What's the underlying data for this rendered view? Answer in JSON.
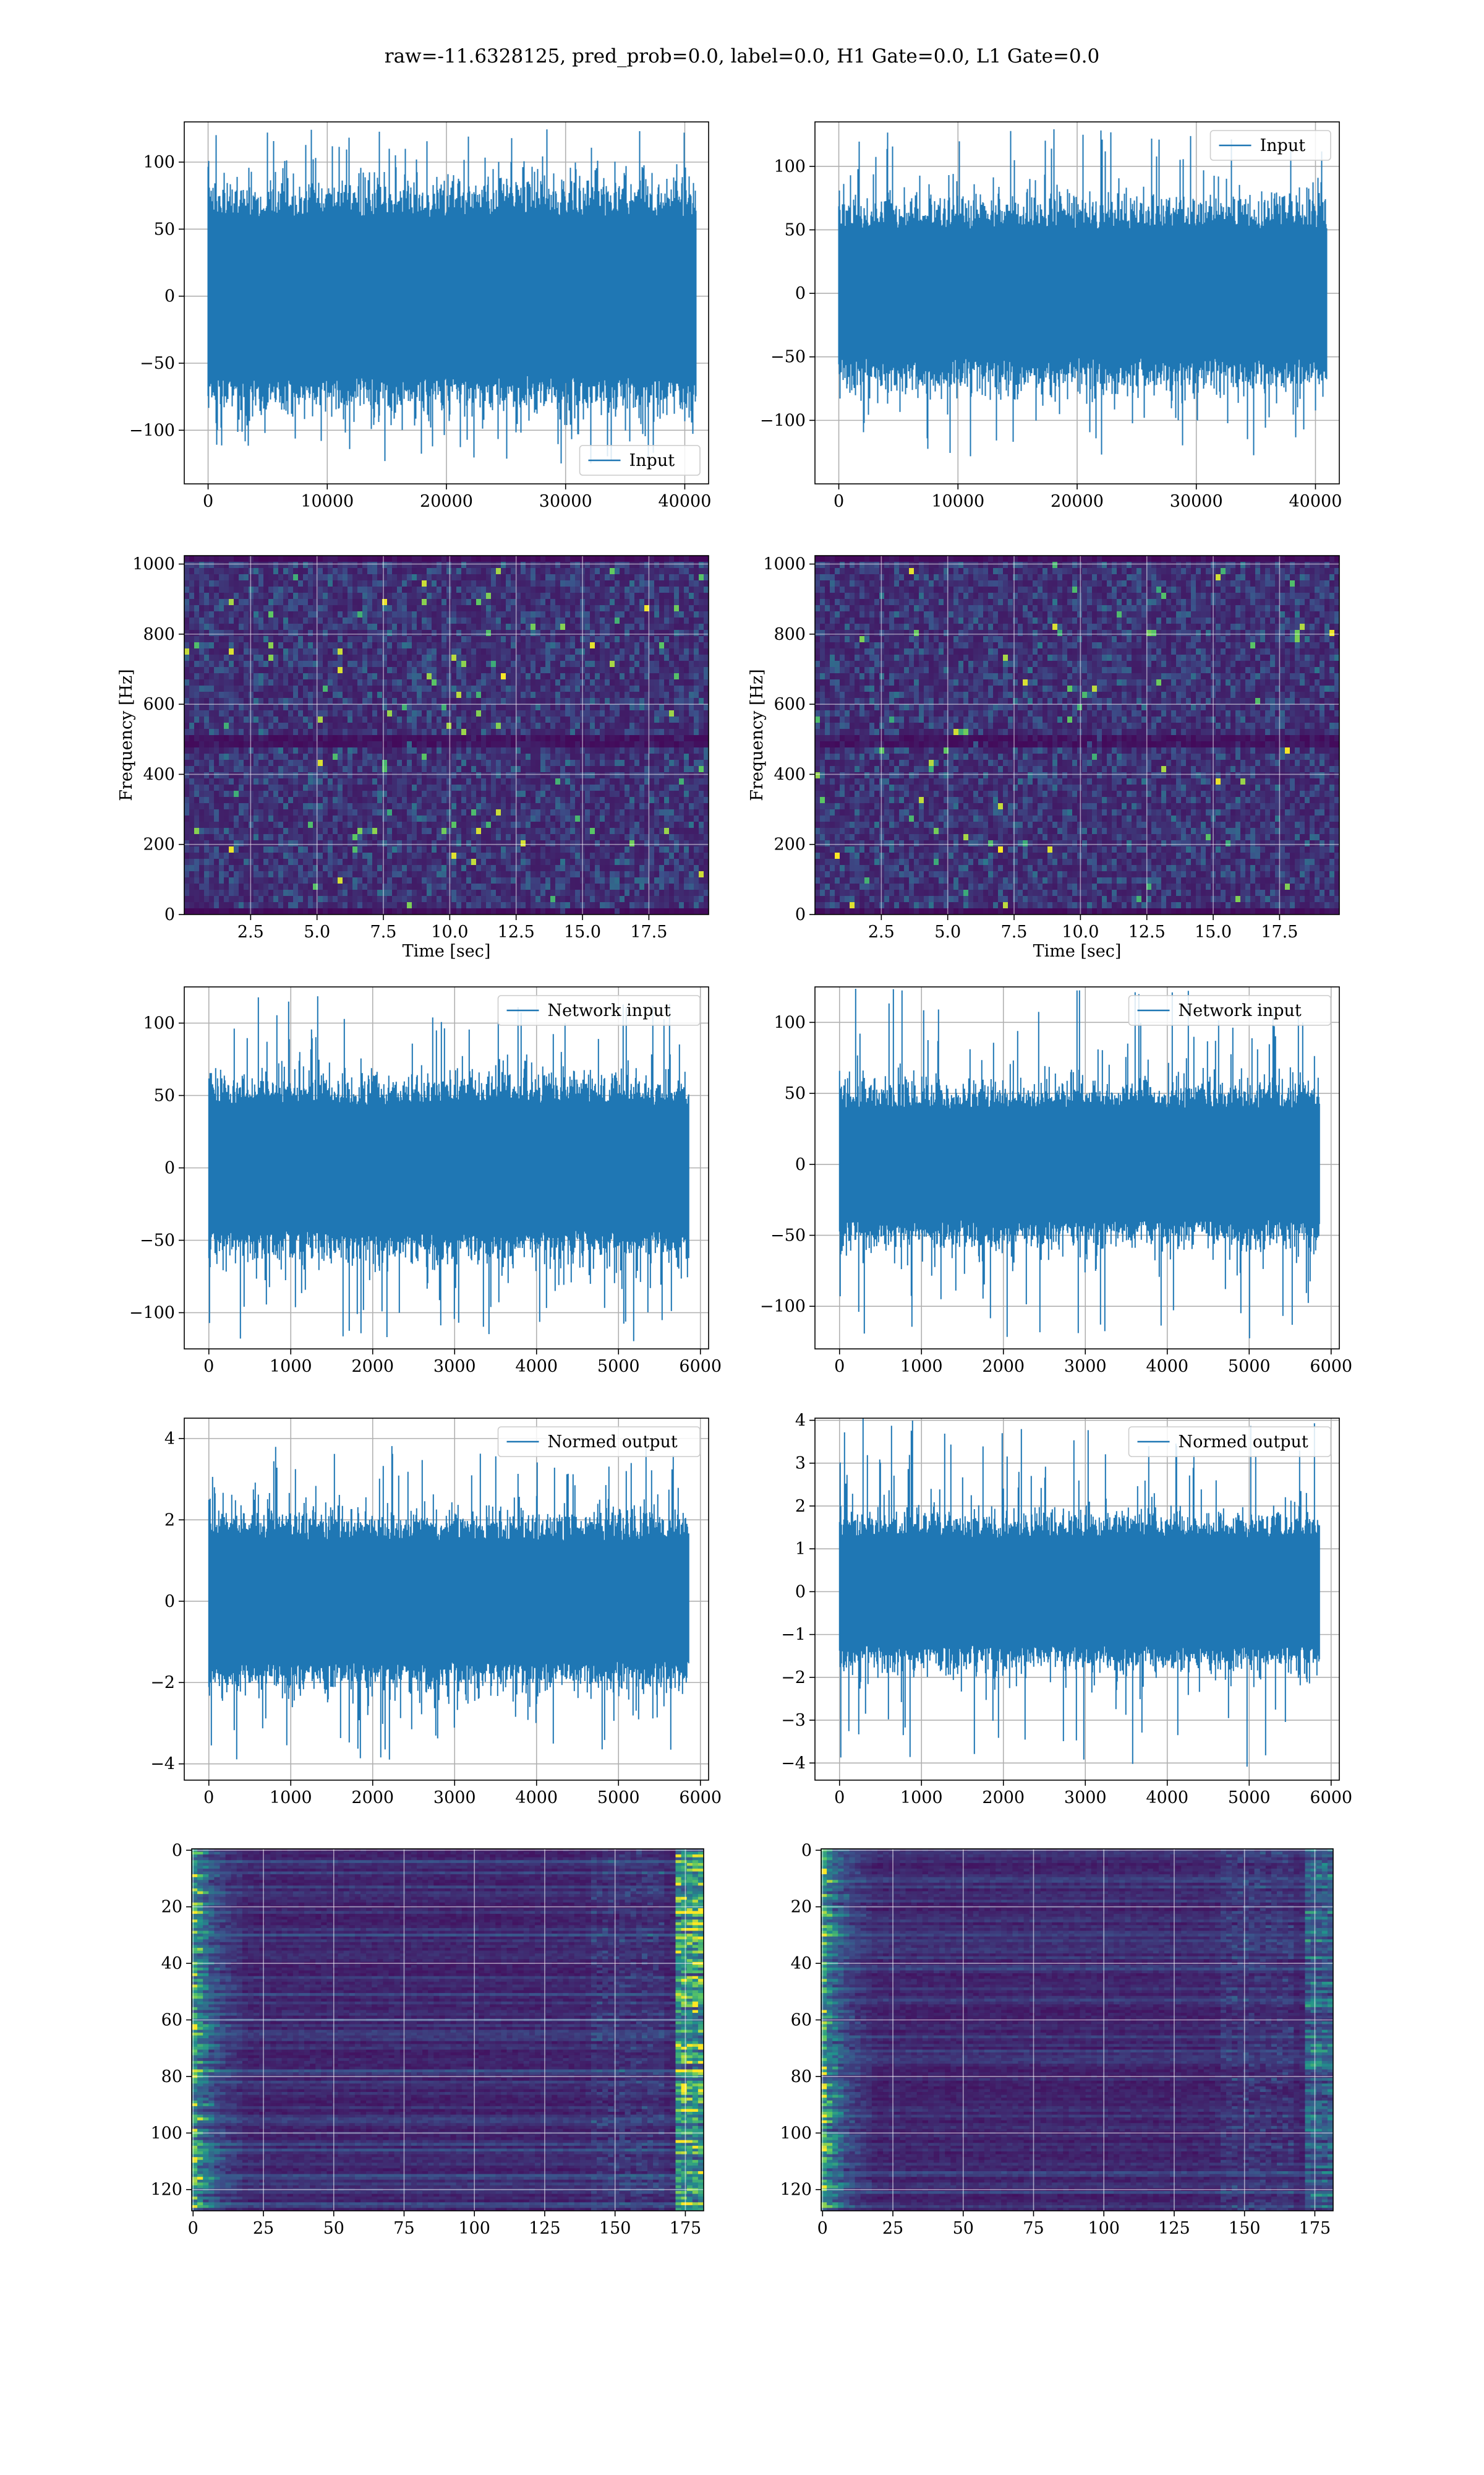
{
  "figure_title": "raw=-11.6328125, pred_prob=0.0, label=0.0, H1 Gate=0.0, L1 Gate=0.0",
  "colors": {
    "line": "#1f77b4",
    "grid": "#b0b0b0",
    "viridis_low": "#440154",
    "viridis_mid": "#21918c",
    "viridis_high": "#fde725"
  },
  "chart_data": [
    {
      "id": "input-h1",
      "type": "line",
      "legend": "Input",
      "legend_loc": "lower-right",
      "xlim": [
        -2000,
        42000
      ],
      "ylim": [
        -140,
        130
      ],
      "xticks": [
        0,
        10000,
        20000,
        30000,
        40000
      ],
      "xtick_labels": [
        "0",
        "10000",
        "20000",
        "30000",
        "40000"
      ],
      "yticks": [
        -100,
        -50,
        0,
        50,
        100
      ],
      "ytick_labels": [
        "−100",
        "−50",
        "0",
        "50",
        "100"
      ],
      "series": [
        {
          "n_samples": 40960,
          "x_start": 0,
          "x_end": 40960,
          "core_amp": 75,
          "spike_amp": 125
        }
      ]
    },
    {
      "id": "input-l1",
      "type": "line",
      "legend": "Input",
      "legend_loc": "upper-right",
      "xlim": [
        -2000,
        42000
      ],
      "ylim": [
        -150,
        135
      ],
      "xticks": [
        0,
        10000,
        20000,
        30000,
        40000
      ],
      "xtick_labels": [
        "0",
        "10000",
        "20000",
        "30000",
        "40000"
      ],
      "yticks": [
        -100,
        -50,
        0,
        50,
        100
      ],
      "ytick_labels": [
        "−100",
        "−50",
        "0",
        "50",
        "100"
      ],
      "series": [
        {
          "n_samples": 40960,
          "x_start": 0,
          "x_end": 40960,
          "core_amp": 65,
          "spike_amp": 130
        }
      ]
    },
    {
      "id": "spec-h1",
      "type": "heatmap",
      "colormap": "viridis",
      "xlim": [
        0,
        19.75
      ],
      "ylim": [
        0,
        1024
      ],
      "xticks": [
        2.5,
        5.0,
        7.5,
        10.0,
        12.5,
        15.0,
        17.5
      ],
      "xtick_labels": [
        "2.5",
        "5.0",
        "7.5",
        "10.0",
        "12.5",
        "15.0",
        "17.5"
      ],
      "yticks": [
        0,
        200,
        400,
        600,
        800,
        1000
      ],
      "ytick_labels": [
        "0",
        "200",
        "400",
        "600",
        "800",
        "1000"
      ],
      "xlabel": "Time [sec]",
      "ylabel": "Frequency [Hz]",
      "dark_band_hz": [
        500
      ]
    },
    {
      "id": "spec-l1",
      "type": "heatmap",
      "colormap": "viridis",
      "xlim": [
        0,
        19.75
      ],
      "ylim": [
        0,
        1024
      ],
      "xticks": [
        2.5,
        5.0,
        7.5,
        10.0,
        12.5,
        15.0,
        17.5
      ],
      "xtick_labels": [
        "2.5",
        "5.0",
        "7.5",
        "10.0",
        "12.5",
        "15.0",
        "17.5"
      ],
      "yticks": [
        0,
        200,
        400,
        600,
        800,
        1000
      ],
      "ytick_labels": [
        "0",
        "200",
        "400",
        "600",
        "800",
        "1000"
      ],
      "xlabel": "Time [sec]",
      "ylabel": "Frequency [Hz]",
      "dark_band_hz": [
        500
      ]
    },
    {
      "id": "netin-h1",
      "type": "line",
      "legend": "Network input",
      "legend_loc": "upper-right",
      "xlim": [
        -300,
        6100
      ],
      "ylim": [
        -125,
        125
      ],
      "xticks": [
        0,
        1000,
        2000,
        3000,
        4000,
        5000,
        6000
      ],
      "xtick_labels": [
        "0",
        "1000",
        "2000",
        "3000",
        "4000",
        "5000",
        "6000"
      ],
      "yticks": [
        -100,
        -50,
        0,
        50,
        100
      ],
      "ytick_labels": [
        "−100",
        "−50",
        "0",
        "50",
        "100"
      ],
      "series": [
        {
          "n_samples": 5860,
          "x_start": 0,
          "x_end": 5860,
          "core_amp": 55,
          "spike_amp": 120
        }
      ]
    },
    {
      "id": "netin-l1",
      "type": "line",
      "legend": "Network input",
      "legend_loc": "upper-right",
      "xlim": [
        -300,
        6100
      ],
      "ylim": [
        -130,
        125
      ],
      "xticks": [
        0,
        1000,
        2000,
        3000,
        4000,
        5000,
        6000
      ],
      "xtick_labels": [
        "0",
        "1000",
        "2000",
        "3000",
        "4000",
        "5000",
        "6000"
      ],
      "yticks": [
        -100,
        -50,
        0,
        50,
        100
      ],
      "ytick_labels": [
        "−100",
        "−50",
        "0",
        "50",
        "100"
      ],
      "series": [
        {
          "n_samples": 5860,
          "x_start": 0,
          "x_end": 5860,
          "core_amp": 50,
          "spike_amp": 125
        }
      ]
    },
    {
      "id": "normed-h1",
      "type": "line",
      "legend": "Normed output",
      "legend_loc": "upper-right",
      "xlim": [
        -300,
        6100
      ],
      "ylim": [
        -4.4,
        4.5
      ],
      "xticks": [
        0,
        1000,
        2000,
        3000,
        4000,
        5000,
        6000
      ],
      "xtick_labels": [
        "0",
        "1000",
        "2000",
        "3000",
        "4000",
        "5000",
        "6000"
      ],
      "yticks": [
        -4,
        -2,
        0,
        2,
        4
      ],
      "ytick_labels": [
        "−4",
        "−2",
        "0",
        "2",
        "4"
      ],
      "series": [
        {
          "n_samples": 5860,
          "x_start": 0,
          "x_end": 5860,
          "core_amp": 1.9,
          "spike_amp": 4.0
        }
      ]
    },
    {
      "id": "normed-l1",
      "type": "line",
      "legend": "Normed output",
      "legend_loc": "upper-right",
      "xlim": [
        -300,
        6100
      ],
      "ylim": [
        -4.4,
        4.05
      ],
      "xticks": [
        0,
        1000,
        2000,
        3000,
        4000,
        5000,
        6000
      ],
      "xtick_labels": [
        "0",
        "1000",
        "2000",
        "3000",
        "4000",
        "5000",
        "6000"
      ],
      "yticks": [
        -4,
        -3,
        -2,
        -1,
        0,
        1,
        2,
        3,
        4
      ],
      "ytick_labels": [
        "−4",
        "−3",
        "−2",
        "−1",
        "0",
        "1",
        "2",
        "3",
        "4"
      ],
      "series": [
        {
          "n_samples": 5860,
          "x_start": 0,
          "x_end": 5860,
          "core_amp": 1.6,
          "spike_amp": 4.1
        }
      ]
    },
    {
      "id": "feat-h1",
      "type": "heatmap",
      "colormap": "viridis",
      "y_inverted": true,
      "xlim": [
        -0.5,
        181.5
      ],
      "ylim": [
        -0.5,
        127.5
      ],
      "rows": 128,
      "cols": 182,
      "xticks": [
        0,
        25,
        50,
        75,
        100,
        125,
        150,
        175
      ],
      "xtick_labels": [
        "0",
        "25",
        "50",
        "75",
        "100",
        "125",
        "150",
        "175"
      ],
      "yticks": [
        0,
        20,
        40,
        60,
        80,
        100,
        120
      ],
      "ytick_labels": [
        "0",
        "20",
        "40",
        "60",
        "80",
        "100",
        "120"
      ]
    },
    {
      "id": "feat-l1",
      "type": "heatmap",
      "colormap": "viridis",
      "y_inverted": true,
      "xlim": [
        -0.5,
        181.5
      ],
      "ylim": [
        -0.5,
        127.5
      ],
      "rows": 128,
      "cols": 182,
      "xticks": [
        0,
        25,
        50,
        75,
        100,
        125,
        150,
        175
      ],
      "xtick_labels": [
        "0",
        "25",
        "50",
        "75",
        "100",
        "125",
        "150",
        "175"
      ],
      "yticks": [
        0,
        20,
        40,
        60,
        80,
        100,
        120
      ],
      "ytick_labels": [
        "0",
        "20",
        "40",
        "60",
        "80",
        "100",
        "120"
      ]
    }
  ]
}
